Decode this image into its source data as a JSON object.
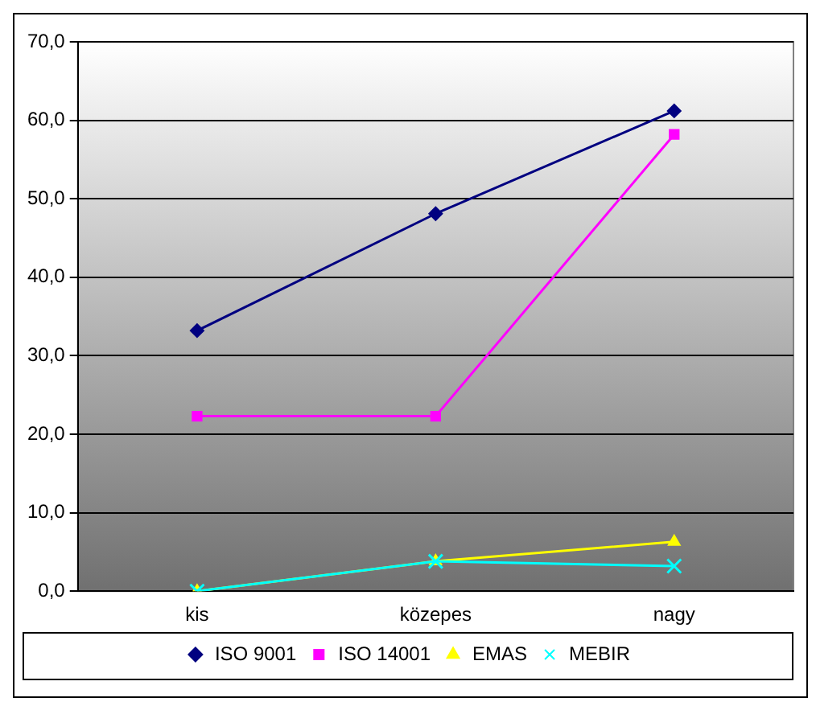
{
  "chart_data": {
    "type": "line",
    "categories": [
      "kis",
      "közepes",
      "nagy"
    ],
    "series": [
      {
        "name": "ISO 9001",
        "color": "#000080",
        "marker": "diamond",
        "values": [
          33.2,
          48.1,
          61.2
        ]
      },
      {
        "name": "ISO 14001",
        "color": "#ff00ff",
        "marker": "square",
        "values": [
          22.3,
          22.3,
          58.2
        ]
      },
      {
        "name": "EMAS",
        "color": "#ffff00",
        "marker": "triangle",
        "values": [
          0,
          3.8,
          6.3
        ]
      },
      {
        "name": "MEBIR",
        "color": "#00ffff",
        "marker": "cross",
        "values": [
          0,
          3.8,
          3.2
        ]
      }
    ],
    "ylim": [
      0,
      70
    ],
    "yticks": [
      {
        "value": 0,
        "label": "0,0"
      },
      {
        "value": 10,
        "label": "10,0"
      },
      {
        "value": 20,
        "label": "20,0"
      },
      {
        "value": 30,
        "label": "30,0"
      },
      {
        "value": 40,
        "label": "40,0"
      },
      {
        "value": 50,
        "label": "50,0"
      },
      {
        "value": 60,
        "label": "60,0"
      },
      {
        "value": 70,
        "label": "70,0"
      }
    ],
    "grid": "y",
    "legend": "bottom",
    "line_style": "solid"
  }
}
